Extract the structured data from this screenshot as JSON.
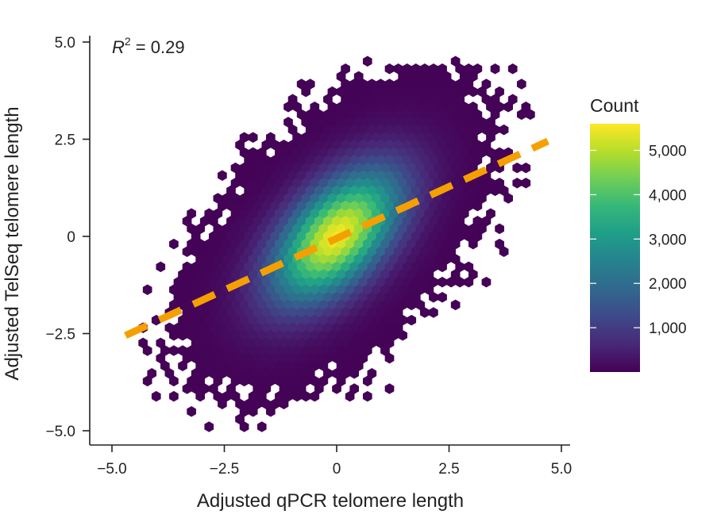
{
  "chart_data": {
    "type": "hexbin",
    "xlabel": "Adjusted qPCR telomere length",
    "ylabel": "Adjusted TelSeq telomere length",
    "xlim": [
      -5.3,
      5.3
    ],
    "ylim": [
      -5.3,
      5.3
    ],
    "xticks": [
      -5.0,
      -2.5,
      0,
      2.5,
      5.0
    ],
    "xtick_labels": [
      "−5.0",
      "−2.5",
      "0",
      "2.5",
      "5.0"
    ],
    "yticks": [
      -5.0,
      -2.5,
      0,
      2.5,
      5.0
    ],
    "ytick_labels": [
      "−5.0",
      "−2.5",
      "0",
      "2.5",
      "5.0"
    ],
    "annotation": {
      "r_symbol": "R",
      "exponent": "2",
      "value_text": " = 0.29",
      "r_squared": 0.29
    },
    "regression_line": {
      "x": [
        -4.7,
        4.7
      ],
      "y": [
        -2.55,
        2.45
      ],
      "color": "#f5a000",
      "style": "dashed"
    },
    "density": {
      "center": [
        0,
        0
      ],
      "sd_x": 1.05,
      "sd_y": 1.25,
      "correlation": 0.54,
      "peak_count": 5600,
      "x_extent": [
        -4.7,
        4.7
      ],
      "y_extent": [
        -4.9,
        4.6
      ]
    },
    "colorbar": {
      "title": "Count",
      "min": 0,
      "max": 5600,
      "ticks": [
        1000,
        2000,
        3000,
        4000,
        5000
      ],
      "tick_labels": [
        "1,000",
        "2,000",
        "3,000",
        "4,000",
        "5,000"
      ],
      "colormap": "viridis",
      "colors": [
        "#440154",
        "#482878",
        "#3e4989",
        "#31688e",
        "#26828e",
        "#1f9e89",
        "#35b779",
        "#6ece58",
        "#b5de2b",
        "#fde725"
      ]
    }
  }
}
